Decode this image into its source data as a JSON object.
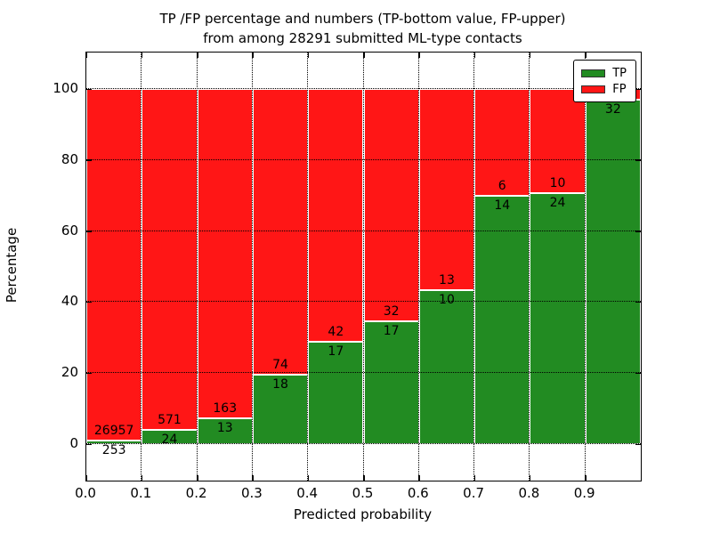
{
  "chart_data": {
    "type": "bar",
    "variant": "stacked-percentage-bars",
    "title_line1": "TP /FP percentage and numbers (TP-bottom value, FP-upper)",
    "title_line2": "from among 28291 submitted ML-type contacts",
    "xlabel": "Predicted probability",
    "ylabel": "Percentage",
    "total_submitted_contacts": "28291",
    "xlim": [
      0.0,
      1.0
    ],
    "ylim": [
      -10,
      110
    ],
    "grid": {
      "style": "dotted",
      "color": "#000000",
      "vertical_at_x_ticks": true,
      "horizontal_at_y_ticks": true
    },
    "x_ticks": [
      {
        "value": 0.0,
        "label": "0.0"
      },
      {
        "value": 0.1,
        "label": "0.1"
      },
      {
        "value": 0.2,
        "label": "0.2"
      },
      {
        "value": 0.3,
        "label": "0.3"
      },
      {
        "value": 0.4,
        "label": "0.4"
      },
      {
        "value": 0.5,
        "label": "0.5"
      },
      {
        "value": 0.6,
        "label": "0.6"
      },
      {
        "value": 0.7,
        "label": "0.7"
      },
      {
        "value": 0.8,
        "label": "0.8"
      },
      {
        "value": 0.9,
        "label": "0.9"
      }
    ],
    "y_ticks": [
      {
        "value": 0,
        "label": "0"
      },
      {
        "value": 20,
        "label": "20"
      },
      {
        "value": 40,
        "label": "40"
      },
      {
        "value": 60,
        "label": "60"
      },
      {
        "value": 80,
        "label": "80"
      },
      {
        "value": 100,
        "label": "100"
      }
    ],
    "colors": {
      "tp": "#228B22",
      "fp": "#FF1616",
      "bar_edge": "#FFFFFF"
    },
    "legend": {
      "position": "upper-right",
      "entries": [
        {
          "label": "TP",
          "color": "#228B22"
        },
        {
          "label": "FP",
          "color": "#FF1616"
        }
      ]
    },
    "bars": [
      {
        "x_range": [
          0.0,
          0.1
        ],
        "tp_label": "253",
        "fp_label": "26957",
        "tp_pct": 0.93
      },
      {
        "x_range": [
          0.1,
          0.2
        ],
        "tp_label": "24",
        "fp_label": "571",
        "tp_pct": 4.03
      },
      {
        "x_range": [
          0.2,
          0.3
        ],
        "tp_label": "13",
        "fp_label": "163",
        "tp_pct": 7.39
      },
      {
        "x_range": [
          0.3,
          0.4
        ],
        "tp_label": "18",
        "fp_label": "74",
        "tp_pct": 19.57
      },
      {
        "x_range": [
          0.4,
          0.5
        ],
        "tp_label": "17",
        "fp_label": "42",
        "tp_pct": 28.81
      },
      {
        "x_range": [
          0.5,
          0.6
        ],
        "tp_label": "17",
        "fp_label": "32",
        "tp_pct": 34.69
      },
      {
        "x_range": [
          0.6,
          0.7
        ],
        "tp_label": "10",
        "fp_label": "13",
        "tp_pct": 43.48
      },
      {
        "x_range": [
          0.7,
          0.8
        ],
        "tp_label": "14",
        "fp_label": "6",
        "tp_pct": 70.0
      },
      {
        "x_range": [
          0.8,
          0.9
        ],
        "tp_label": "24",
        "fp_label": "10",
        "tp_pct": 70.59
      },
      {
        "x_range": [
          0.9,
          1.0
        ],
        "tp_label": "32",
        "fp_label": "",
        "tp_pct": 96.97
      }
    ]
  }
}
